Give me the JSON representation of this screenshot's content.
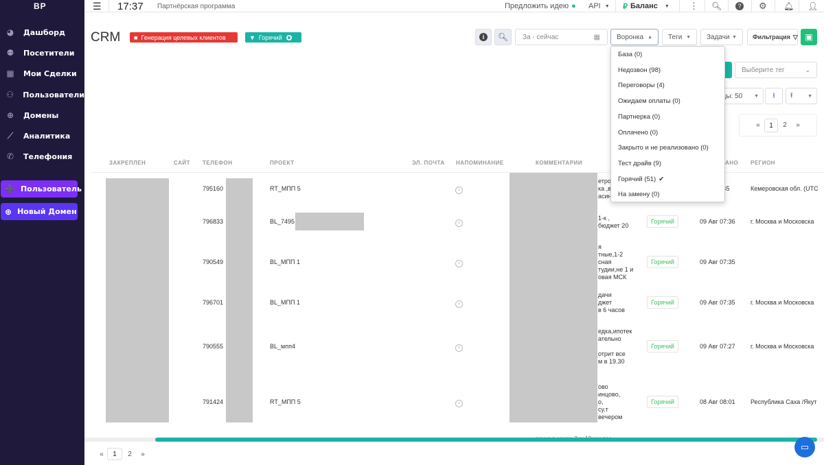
{
  "app": {
    "logo": "BP"
  },
  "sidebar": {
    "items": [
      {
        "label": "Дашборд",
        "icon": "dashboard-icon",
        "glyph": "◕"
      },
      {
        "label": "Посетители",
        "icon": "visitors-icon",
        "glyph": "⚉"
      },
      {
        "label": "Мои Сделки",
        "icon": "deals-icon",
        "glyph": "▦"
      },
      {
        "label": "Пользователи",
        "icon": "users-icon",
        "glyph": "⚇"
      },
      {
        "label": "Домены",
        "icon": "globe-icon",
        "glyph": "⊕"
      },
      {
        "label": "Аналитика",
        "icon": "analytics-icon",
        "glyph": "⟋"
      },
      {
        "label": "Телефония",
        "icon": "phone-icon",
        "glyph": "✆"
      }
    ],
    "add_user_label": "Пользователь",
    "new_domain_label": "Новый Домен",
    "add_user_color": "#7b2ff7",
    "new_domain_color": "#5a36f2"
  },
  "topbar": {
    "time": "17:37",
    "title": "Партнёрская программа",
    "suggest_label": "Предложить идею",
    "api_label": "API",
    "balance_label": "Баланс",
    "balance_symbol": "₽"
  },
  "crm": {
    "title": "CRM",
    "tag_generation": "Генерация целевых клиентов",
    "tag_hot": "Горячий",
    "date_placeholder": "За - сейчас",
    "funnel_label": "Воронка",
    "tags_label": "Теги",
    "tasks_label": "Задачи",
    "filter_label": "Фильтрация",
    "select_tag_placeholder": "Выберите тег",
    "per_page_label": "ицы: 50"
  },
  "funnel_dropdown": {
    "options": [
      "База (0)",
      "Недозвон (98)",
      "Переговоры (4)",
      "Ожидаем оплаты (0)",
      "Партнерка (0)",
      "Оплачено (0)",
      "Закрыто и не реализовано (0)",
      "Тест драйв (9)",
      "Горячий (51)",
      "На замену (0)"
    ],
    "selected_mark": "✔"
  },
  "table": {
    "headers": [
      "ЗАКРЕПЛЕН",
      "САЙТ",
      "ТЕЛЕФОН",
      "ПРОЕКТ",
      "ЭЛ. ПОЧТА",
      "НАПОМИНАНИЕ",
      "КОММЕНТАРИИ",
      "АНО",
      "РЕГИОН"
    ],
    "rows": [
      {
        "phone": "795160",
        "project": "RT_МПП 5",
        "comment": [
          "етро",
          "ка ,в",
          "асин"
        ],
        "status": "",
        "date": "07:45",
        "region": "Кемеровская обл. (UTC"
      },
      {
        "phone": "796833",
        "project": "BL_7495",
        "comment": [
          "1-к ,",
          "бюджет 20"
        ],
        "status": "Горячий",
        "date": "09 Авг 07:36",
        "region": "г. Москва и Московска"
      },
      {
        "phone": "790549",
        "project": "BL_МПП 1",
        "comment": [
          "я",
          "тные,1-2",
          "сная",
          "тудии,не 1 и",
          "овая МСК"
        ],
        "status": "Горячий",
        "date": "09 Авг 07:35",
        "region": ""
      },
      {
        "phone": "796701",
        "project": "BL_МПП 1",
        "comment": [
          "дачи",
          "джет",
          "в 6 часов"
        ],
        "status": "Горячий",
        "date": "09 Авг 07:35",
        "region": "г. Москва и Московска"
      },
      {
        "phone": "790555",
        "project": "BL_мпп4",
        "comment": [
          "едка,ипотек",
          "ательно",
          "",
          "отрит все",
          "м в 19.30"
        ],
        "status": "Горячий",
        "date": "09 Авг 07:27",
        "region": "г. Москва и Московска"
      },
      {
        "phone": "791424",
        "project": "RT_МПП 5",
        "comment": [
          "ово",
          "инцово,",
          "о,",
          "су.т",
          "вечером"
        ],
        "status": "Горячий",
        "date": "08 Авг 08:01",
        "region": "Республика Саха /Якут"
      }
    ],
    "cut_off_text": "ранна в часах. 3км 12мин вес"
  },
  "pagination": {
    "prev": "«",
    "pages": [
      "1",
      "2"
    ],
    "next": "»"
  },
  "colors": {
    "sidebar_bg": "#1f1a3c",
    "accent_green": "#21c07a",
    "teal": "#1bb3a5",
    "red": "#e53935",
    "hot_green": "#3fbf62"
  }
}
